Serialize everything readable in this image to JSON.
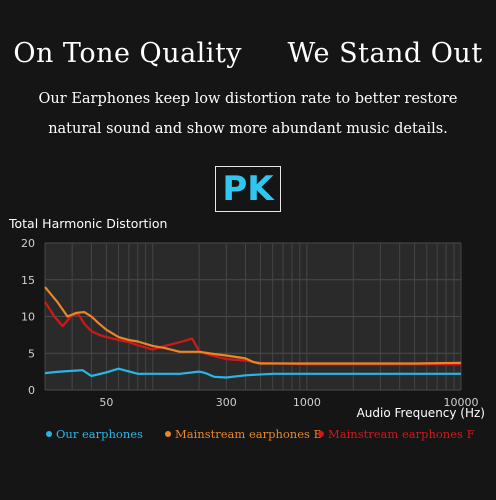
{
  "headline": {
    "left": "On Tone Quality",
    "right": "We Stand Out"
  },
  "subheadline": {
    "line1": "Our Earphones keep low distortion rate to better restore",
    "line2": "natural sound and show more abundant  music details."
  },
  "badge": {
    "text": "PK",
    "color": "#2fc6f2"
  },
  "chart_data": {
    "type": "line",
    "title": "Total Harmonic Distortion",
    "xlabel": "Audio Frequency (Hz)",
    "xscale": "log",
    "xlim": [
      20,
      10000
    ],
    "ylim": [
      0,
      20
    ],
    "xticks": [
      50,
      300,
      1000,
      10000
    ],
    "yticks": [
      0,
      5,
      10,
      15,
      20
    ],
    "grid": true,
    "legend_position": "bottom",
    "series": [
      {
        "name": "Our earphones",
        "color": "#29b6e6",
        "x": [
          20,
          25,
          30,
          35,
          40,
          50,
          60,
          80,
          100,
          150,
          200,
          220,
          250,
          300,
          400,
          600,
          1000,
          2000,
          5000,
          10000
        ],
        "y": [
          2.3,
          2.5,
          2.6,
          2.7,
          1.9,
          2.4,
          2.9,
          2.2,
          2.2,
          2.2,
          2.5,
          2.3,
          1.8,
          1.7,
          2.0,
          2.2,
          2.2,
          2.2,
          2.2,
          2.2
        ]
      },
      {
        "name": "Mainstream earphones B",
        "color": "#e8862a",
        "x": [
          20,
          24,
          28,
          32,
          36,
          40,
          45,
          50,
          60,
          70,
          80,
          100,
          120,
          150,
          200,
          250,
          300,
          400,
          450,
          500,
          1000,
          2000,
          5000,
          10000
        ],
        "y": [
          14.0,
          12.0,
          10.0,
          10.5,
          10.6,
          10.0,
          9.0,
          8.2,
          7.2,
          6.8,
          6.6,
          6.0,
          5.7,
          5.2,
          5.2,
          4.9,
          4.7,
          4.3,
          3.8,
          3.6,
          3.6,
          3.6,
          3.6,
          3.7
        ]
      },
      {
        "name": "Mainstream earphones F",
        "color": "#d01818",
        "x": [
          20,
          23,
          26,
          30,
          33,
          36,
          40,
          45,
          50,
          60,
          70,
          80,
          100,
          120,
          150,
          180,
          200,
          230,
          250,
          300,
          400,
          500,
          1000,
          2000,
          5000,
          10000
        ],
        "y": [
          12.0,
          10.0,
          8.7,
          10.2,
          10.3,
          9.0,
          8.0,
          7.5,
          7.2,
          6.8,
          6.5,
          6.1,
          5.5,
          6.0,
          6.5,
          7.0,
          5.3,
          4.8,
          4.6,
          4.2,
          4.0,
          3.7,
          3.5,
          3.5,
          3.5,
          3.5
        ]
      }
    ]
  }
}
